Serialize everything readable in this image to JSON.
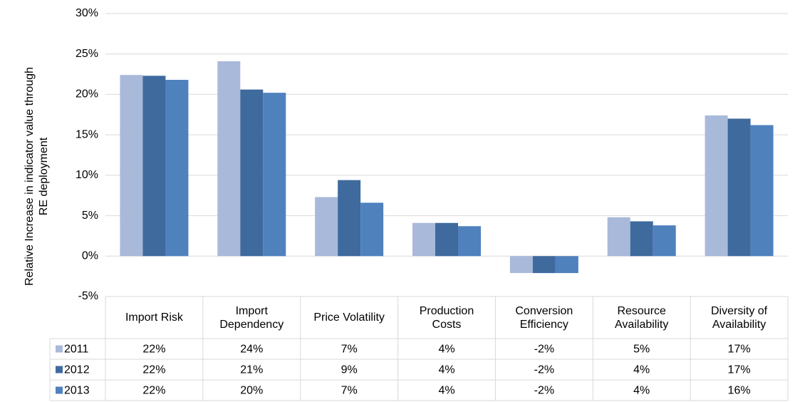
{
  "chart_data": {
    "type": "bar",
    "y_label": [
      "Relative Increase in indicator value through",
      "RE deployment"
    ],
    "categories": [
      "Import Risk",
      "Import Dependency",
      "Price Volatility",
      "Production Costs",
      "Conversion Efficiency",
      "Resource Availability",
      "Diversity of Availability"
    ],
    "series": [
      {
        "name": "2011",
        "color": "#a9b9d9",
        "values": [
          22.4,
          24.1,
          7.3,
          4.1,
          -2.1,
          4.8,
          17.4
        ],
        "value_labels": [
          "22%",
          "24%",
          "7%",
          "4%",
          "-2%",
          "5%",
          "17%"
        ]
      },
      {
        "name": "2012",
        "color": "#3e6a9e",
        "values": [
          22.3,
          20.6,
          9.4,
          4.1,
          -2.1,
          4.3,
          17.0
        ],
        "value_labels": [
          "22%",
          "21%",
          "9%",
          "4%",
          "-2%",
          "4%",
          "17%"
        ]
      },
      {
        "name": "2013",
        "color": "#4f81bd",
        "values": [
          21.8,
          20.2,
          6.6,
          3.7,
          -2.1,
          3.8,
          16.2
        ],
        "value_labels": [
          "22%",
          "20%",
          "7%",
          "4%",
          "-2%",
          "4%",
          "16%"
        ]
      }
    ],
    "ylim": [
      -5,
      30
    ],
    "yticks": [
      {
        "value": -5,
        "label": "-5%"
      },
      {
        "value": 0,
        "label": "0%"
      },
      {
        "value": 5,
        "label": "5%"
      },
      {
        "value": 10,
        "label": "10%"
      },
      {
        "value": 15,
        "label": "15%"
      },
      {
        "value": 20,
        "label": "20%"
      },
      {
        "value": 25,
        "label": "25%"
      },
      {
        "value": 30,
        "label": "30%"
      }
    ],
    "grid": true
  }
}
